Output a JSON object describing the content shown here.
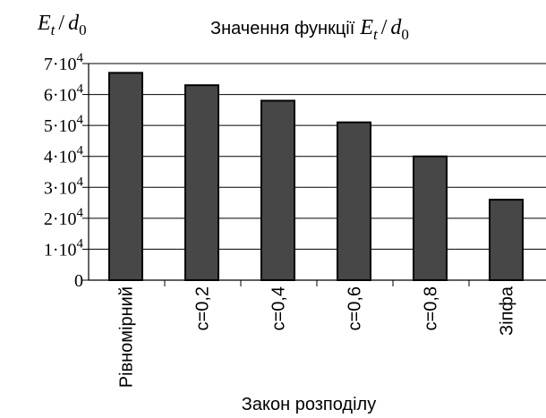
{
  "chart_data": {
    "type": "bar",
    "title_prefix": "Значення функції",
    "y_axis_title": {
      "var": "E",
      "sub": "t",
      "slash": "/",
      "var2": "d",
      "sub2": "0"
    },
    "xlabel": "Закон розподілу",
    "categories": [
      "Рівномірний",
      "c=0,2",
      "c=0,4",
      "c=0,6",
      "c=0,8",
      "Зіпфа"
    ],
    "values": [
      67000,
      63000,
      58000,
      51000,
      40000,
      26000
    ],
    "ylim": [
      0,
      70000
    ],
    "yticks": [
      {
        "value": 0,
        "label": "0"
      },
      {
        "value": 10000,
        "base": "1·10",
        "exp": "4"
      },
      {
        "value": 20000,
        "base": "2·10",
        "exp": "4"
      },
      {
        "value": 30000,
        "base": "3·10",
        "exp": "4"
      },
      {
        "value": 40000,
        "base": "4·10",
        "exp": "4"
      },
      {
        "value": 50000,
        "base": "5·10",
        "exp": "4"
      },
      {
        "value": 60000,
        "base": "6·10",
        "exp": "4"
      },
      {
        "value": 70000,
        "base": "7·10",
        "exp": "4"
      }
    ],
    "grid": true,
    "legend": "none",
    "bar_color": "#474747",
    "grid_color": "#000000"
  }
}
